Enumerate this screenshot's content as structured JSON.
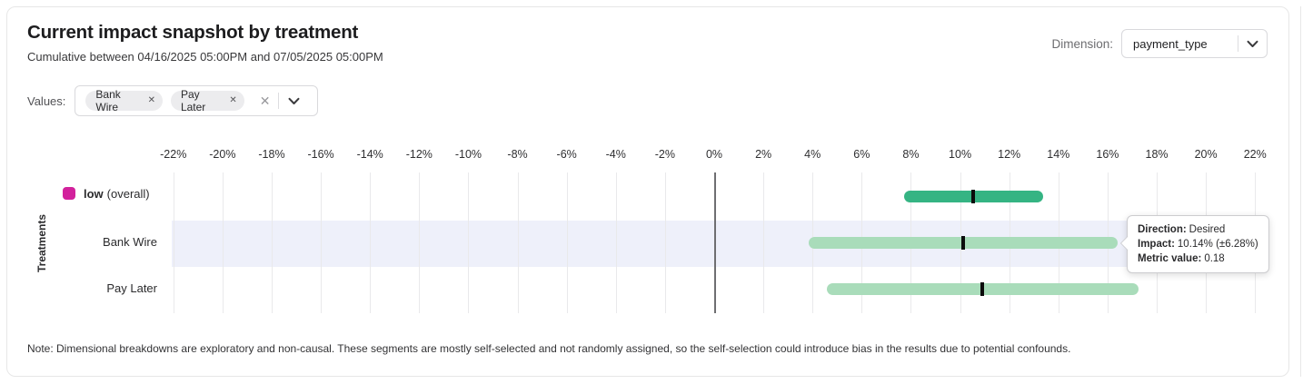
{
  "header": {
    "title": "Current impact snapshot by treatment",
    "subtitle": "Cumulative between 04/16/2025 05:00PM and 07/05/2025 05:00PM",
    "dimension_label": "Dimension:",
    "dimension_value": "payment_type"
  },
  "values_filter": {
    "label": "Values:",
    "chips": [
      {
        "label": "Bank Wire"
      },
      {
        "label": "Pay Later"
      }
    ],
    "remove_icon": "✕",
    "clear_icon": "✕"
  },
  "tooltip": {
    "direction_label": "Direction:",
    "direction_value": "Desired",
    "impact_label": "Impact:",
    "impact_value": "10.14% (±6.28%)",
    "metric_label": "Metric value:",
    "metric_value": "0.18"
  },
  "note": "Note: Dimensional breakdowns are exploratory and non-causal. These segments are mostly self-selected and not randomly assigned, so the self-selection could introduce bias in the results due to potential confounds.",
  "colors": {
    "accent_magenta": "#d2219c",
    "bar_green_dark": "#35b483",
    "bar_green_light": "#a9dcba",
    "row_highlight": "#eef0fa",
    "marker_black": "#0c0c0c"
  },
  "chart_data": {
    "type": "bar",
    "subtype": "horizontal-confidence-interval",
    "ylabel": "Treatments",
    "axis": {
      "min": -22,
      "max": 22,
      "step": 2,
      "unit": "%"
    },
    "grid": true,
    "rows": [
      {
        "label": "low",
        "label_suffix": "(overall)",
        "legend_color": "#d2219c",
        "impact_pct": 10.55,
        "ci_pct": 2.83,
        "low_pct": 7.72,
        "high_pct": 13.38,
        "bar_color": "#35b483",
        "highlighted": false
      },
      {
        "label": "Bank Wire",
        "impact_pct": 10.14,
        "ci_pct": 6.28,
        "low_pct": 3.86,
        "high_pct": 16.42,
        "bar_color": "#a9dcba",
        "highlighted": true,
        "direction": "Desired",
        "metric_value": 0.18
      },
      {
        "label": "Pay Later",
        "impact_pct": 10.92,
        "ci_pct": 6.33,
        "low_pct": 4.59,
        "high_pct": 17.25,
        "bar_color": "#a9dcba",
        "highlighted": false
      }
    ]
  }
}
